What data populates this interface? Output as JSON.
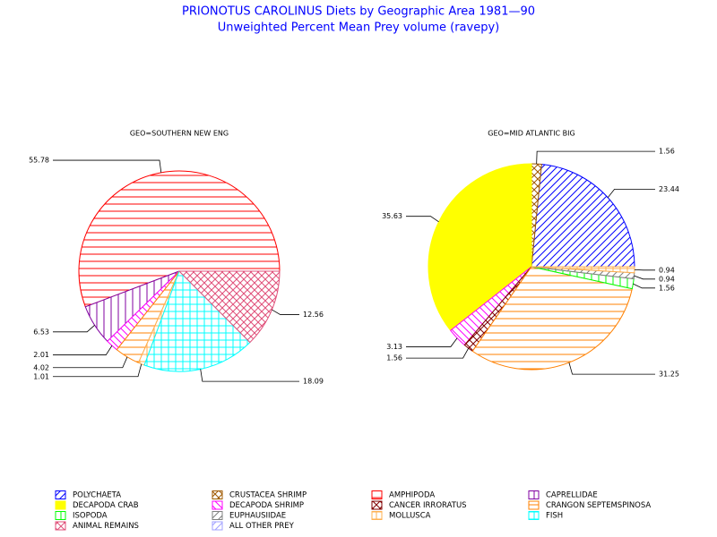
{
  "title": "PRIONOTUS CAROLINUS Diets by Geographic Area 1981—90",
  "subtitle": "Unweighted Percent Mean Prey volume (ravepy)",
  "legend": {
    "labels": [
      "POLYCHAETA",
      "CRUSTACEA SHRIMP",
      "AMPHIPODA",
      "CAPRELLIDAE",
      "DECAPODA CRAB",
      "DECAPODA SHRIMP",
      "CANCER IRRORATUS",
      "CRANGON SEPTEMSPINOSA",
      "ISOPODA",
      "EUPHAUSIIDAE",
      "MOLLUSCA",
      "FISH",
      "ANIMAL REMAINS",
      "ALL OTHER PREY"
    ],
    "colors": [
      "#0000ff",
      "#a05a00",
      "#ff0000",
      "#8000a0",
      "#ffff00",
      "#ff00ff",
      "#800000",
      "#ff8000",
      "#00ff00",
      "#808080",
      "#ffb050",
      "#00ffff",
      "#e0507a",
      "#a0a0ff"
    ],
    "patterns": [
      "diag-up",
      "cross-x",
      "horizontal",
      "vertical",
      "solid",
      "diag-down",
      "cross-x",
      "horizontal",
      "vertical",
      "diag-up",
      "grid",
      "grid",
      "cross-x",
      "diag-up"
    ]
  },
  "chart_data": [
    {
      "type": "pie",
      "title": "GEO=SOUTHERN NEW ENG",
      "values": [
        null,
        null,
        55.78,
        6.53,
        null,
        2.01,
        null,
        4.02,
        null,
        null,
        1.01,
        18.09,
        12.56,
        null
      ]
    },
    {
      "type": "pie",
      "title": "GEO=MID ATLANTIC BIG",
      "values": [
        23.44,
        1.56,
        null,
        null,
        35.63,
        3.13,
        1.56,
        31.25,
        1.56,
        0.94,
        0.94,
        null,
        null,
        null
      ]
    }
  ]
}
